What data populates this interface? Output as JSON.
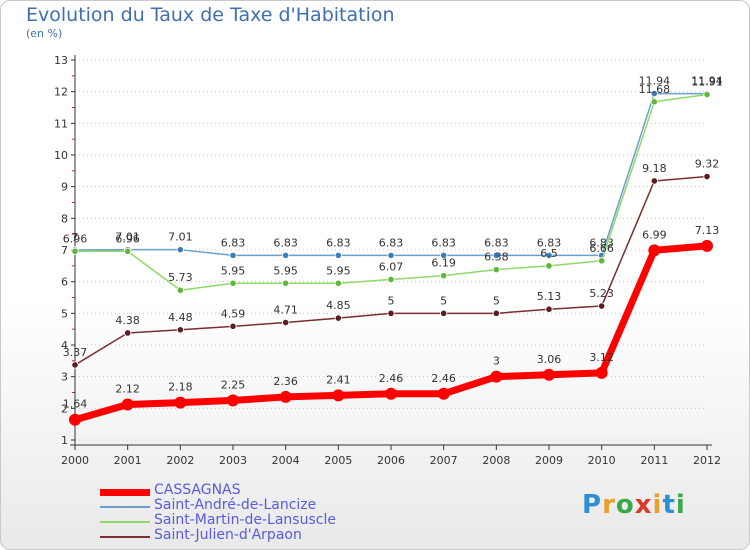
{
  "title": "Evolution du Taux de Taxe d'Habitation",
  "subtitle": "(en %)",
  "logo_letters": [
    "P",
    "r",
    "o",
    "x",
    "i",
    "t",
    "i"
  ],
  "logo_colors": [
    "#2f8fd5",
    "#e8a12a",
    "#3aa94a",
    "#d93a2a",
    "#e8a12a",
    "#2f8fd5",
    "#3aa94a"
  ],
  "chart_data": {
    "type": "line",
    "title": "Evolution du Taux de Taxe d'Habitation",
    "ylabel": "(en %)",
    "xlabel": "",
    "ylim": [
      1,
      13
    ],
    "yticks": [
      1,
      2,
      3,
      4,
      5,
      6,
      7,
      8,
      9,
      10,
      11,
      12,
      13
    ],
    "x": [
      "2000",
      "2001",
      "2002",
      "2003",
      "2004",
      "2005",
      "2006",
      "2007",
      "2008",
      "2009",
      "2010",
      "2011",
      "2012"
    ],
    "series": [
      {
        "name": "Saint-André-de-Lancize",
        "color": "#6b9fcc",
        "marker": "#3b7fbf",
        "values": [
          7,
          7.01,
          7.01,
          6.83,
          6.83,
          6.83,
          6.83,
          6.83,
          6.83,
          6.83,
          6.83,
          11.94,
          11.94
        ],
        "labels": [
          "7",
          "7.01",
          "7.01",
          "6.83",
          "6.83",
          "6.83",
          "6.83",
          "6.83",
          "6.83",
          "6.83",
          "6.83",
          "11.94",
          "11.94"
        ]
      },
      {
        "name": "Saint-Martin-de-Lansuscle",
        "color": "#8fd86a",
        "marker": "#5fb83a",
        "values": [
          6.96,
          6.96,
          5.73,
          5.95,
          5.95,
          5.95,
          6.07,
          6.19,
          6.38,
          6.5,
          6.66,
          11.68,
          11.91
        ],
        "labels": [
          "6.96",
          "6.96",
          "5.73",
          "5.95",
          "5.95",
          "5.95",
          "6.07",
          "6.19",
          "6.38",
          "6.5",
          "6.66",
          "11.68",
          "11.91"
        ]
      },
      {
        "name": "Saint-Julien-d'Arpaon",
        "color": "#7a2e2e",
        "marker": "#5a1e1e",
        "values": [
          3.37,
          4.38,
          4.48,
          4.59,
          4.71,
          4.85,
          5,
          5,
          5,
          5.13,
          5.23,
          9.18,
          9.32
        ],
        "labels": [
          "3.37",
          "4.38",
          "4.48",
          "4.59",
          "4.71",
          "4.85",
          "5",
          "5",
          "5",
          "5.13",
          "5.23",
          "9.18",
          "9.32"
        ]
      },
      {
        "name": "CASSAGNAS",
        "color": "#ff0000",
        "marker": "#ff0000",
        "values": [
          1.64,
          2.12,
          2.18,
          2.25,
          2.36,
          2.41,
          2.46,
          2.46,
          3,
          3.06,
          3.12,
          6.99,
          7.13
        ],
        "labels": [
          "1.64",
          "2.12",
          "2.18",
          "2.25",
          "2.36",
          "2.41",
          "2.46",
          "2.46",
          "3",
          "3.06",
          "3.12",
          "6.99",
          "7.13"
        ]
      }
    ],
    "legend": [
      "CASSAGNAS",
      "Saint-André-de-Lancize",
      "Saint-Martin-de-Lansuscle",
      "Saint-Julien-d'Arpaon"
    ],
    "legend_colors": [
      "#ff0000",
      "#6b9fcc",
      "#8fd86a",
      "#7a2e2e"
    ],
    "legend_position": "bottom-left",
    "grid": "horizontal dotted"
  }
}
